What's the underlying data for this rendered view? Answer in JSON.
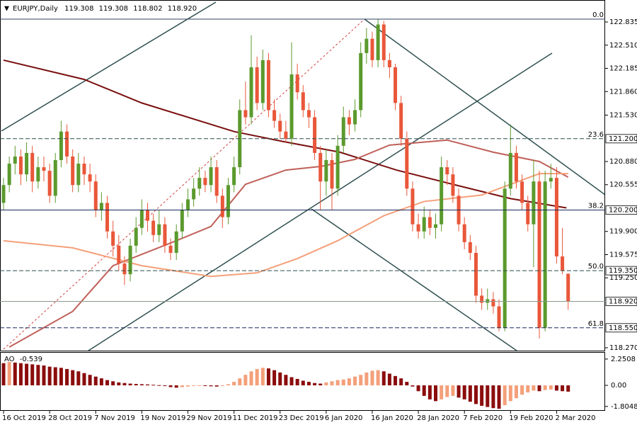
{
  "chart_data": {
    "type": "candlestick",
    "title": "EURJPY,Daily",
    "last_ohlc_labels": [
      "119.308",
      "119.308",
      "118.802",
      "118.920"
    ],
    "up_color": "#5b9a2e",
    "down_color": "#e9573a",
    "ylim": [
      118.22,
      123.143
    ],
    "yticks": [
      122.835,
      {
        "value": 122.51,
        "label": "122.510"
      },
      122.185,
      {
        "value": 121.86,
        "label": "121.860"
      },
      {
        "value": 121.53,
        "label": "121.530"
      },
      {
        "value": 120.88,
        "label": "120.880"
      },
      120.555,
      {
        "value": 119.9,
        "label": "119.900"
      },
      119.575,
      {
        "value": 119.25,
        "label": "119.250"
      },
      {
        "value": 118.27,
        "label": "118.270"
      }
    ],
    "xticks": [
      {
        "value": 0,
        "label": "16 Oct 2019"
      },
      {
        "value": 8,
        "label": "28 Oct 2019"
      },
      {
        "value": 16,
        "label": "7 Nov 2019"
      },
      {
        "value": 24,
        "label": "19 Nov 2019"
      },
      {
        "value": 32,
        "label": "29 Nov 2019"
      },
      {
        "value": 40,
        "label": "11 Dec 2019"
      },
      {
        "value": 48,
        "label": "23 Dec 2019"
      },
      {
        "value": 56,
        "label": "6 Jan 2020"
      },
      {
        "value": 64,
        "label": "16 Jan 2020"
      },
      {
        "value": 72,
        "label": "28 Jan 2020"
      },
      {
        "value": 80,
        "label": "7 Feb 2020"
      },
      {
        "value": 88,
        "label": "19 Feb 2020"
      },
      {
        "value": 96,
        "label": "2 Mar 2020"
      }
    ],
    "fib_levels": [
      {
        "level": "0.0",
        "price": 122.875,
        "color": "#2f3f5f",
        "dashed": false
      },
      {
        "level": "23.6",
        "price": {
          "value": 121.2,
          "label": "121.200"
        },
        "color": "#2f4f4f",
        "dashed": true
      },
      {
        "level": "38.2",
        "price": {
          "value": 120.2,
          "label": "120.200"
        },
        "color": "#1a2a5a",
        "dashed": false
      },
      {
        "level": "50.0",
        "price": {
          "value": 119.35,
          "label": "119.350"
        },
        "color": "#2f4f4f",
        "dashed": true
      },
      {
        "level": "61.8",
        "price": {
          "value": 118.55,
          "label": "118.550"
        },
        "color": "#1a2a5a",
        "dashed": true
      }
    ],
    "ma_lines": [
      {
        "color": "#7a0f0f",
        "x": [
          0,
          14,
          24,
          40,
          48.5,
          58.4,
          68.2,
          78,
          88,
          97.7
        ],
        "values": [
          122.3,
          122.03,
          121.7,
          121.3,
          121.16,
          121.01,
          120.76,
          120.56,
          120.36,
          120.23
        ]
      },
      {
        "color": "#c0605a",
        "x": [
          1,
          12,
          19,
          30,
          36,
          42,
          49,
          55,
          61,
          67,
          77,
          85,
          93,
          98
        ],
        "values": [
          118.28,
          118.78,
          119.42,
          119.77,
          119.97,
          120.56,
          120.76,
          120.81,
          120.91,
          121.11,
          121.18,
          121.01,
          120.88,
          120.66
        ]
      },
      {
        "color": "#f4a07a",
        "x": [
          0,
          12,
          24,
          36,
          44,
          51,
          58,
          66,
          73,
          83,
          93,
          98
        ],
        "values": [
          119.77,
          119.67,
          119.42,
          119.27,
          119.32,
          119.52,
          119.77,
          120.12,
          120.32,
          120.41,
          120.71,
          120.71
        ]
      }
    ],
    "candles": [
      [
        120.3,
        120.65,
        120.2,
        120.55
      ],
      [
        120.55,
        120.95,
        120.45,
        120.85
      ],
      [
        120.85,
        121.1,
        120.7,
        120.95
      ],
      [
        120.95,
        121.05,
        120.55,
        120.7
      ],
      [
        120.7,
        121.15,
        120.6,
        121.0
      ],
      [
        121.0,
        121.1,
        120.45,
        120.6
      ],
      [
        120.6,
        120.95,
        120.5,
        120.8
      ],
      [
        120.8,
        120.95,
        120.6,
        120.75
      ],
      [
        120.75,
        120.85,
        120.3,
        120.4
      ],
      [
        120.4,
        121.0,
        120.3,
        120.9
      ],
      [
        120.9,
        121.45,
        120.8,
        121.3
      ],
      [
        121.3,
        121.4,
        120.85,
        120.95
      ],
      [
        120.95,
        121.05,
        120.45,
        120.55
      ],
      [
        120.55,
        121.0,
        120.45,
        120.85
      ],
      [
        120.85,
        120.95,
        120.55,
        120.7
      ],
      [
        120.7,
        120.85,
        120.45,
        120.6
      ],
      [
        120.6,
        120.7,
        120.1,
        120.2
      ],
      [
        120.2,
        120.45,
        120.05,
        120.3
      ],
      [
        120.3,
        120.4,
        119.8,
        119.9
      ],
      [
        119.9,
        120.05,
        119.55,
        119.7
      ],
      [
        119.7,
        119.85,
        119.35,
        119.45
      ],
      [
        119.45,
        119.55,
        119.15,
        119.3
      ],
      [
        119.3,
        119.8,
        119.2,
        119.7
      ],
      [
        119.7,
        120.1,
        119.6,
        119.95
      ],
      [
        119.95,
        120.35,
        119.85,
        120.2
      ],
      [
        120.2,
        120.3,
        119.9,
        120.05
      ],
      [
        120.05,
        120.15,
        119.75,
        119.85
      ],
      [
        119.85,
        120.2,
        119.75,
        120.0
      ],
      [
        120.0,
        120.1,
        119.6,
        119.7
      ],
      [
        119.7,
        119.8,
        119.5,
        119.6
      ],
      [
        119.6,
        120.0,
        119.5,
        119.9
      ],
      [
        119.9,
        120.3,
        119.8,
        120.2
      ],
      [
        120.2,
        120.5,
        120.1,
        120.35
      ],
      [
        120.35,
        120.65,
        120.25,
        120.5
      ],
      [
        120.5,
        120.8,
        120.4,
        120.65
      ],
      [
        120.65,
        120.75,
        120.45,
        120.55
      ],
      [
        120.55,
        120.95,
        120.45,
        120.8
      ],
      [
        120.8,
        120.9,
        120.3,
        120.4
      ],
      [
        120.4,
        120.5,
        119.95,
        120.1
      ],
      [
        120.1,
        120.65,
        120.0,
        120.55
      ],
      [
        120.55,
        120.95,
        120.45,
        120.8
      ],
      [
        120.8,
        121.75,
        120.7,
        121.6
      ],
      [
        121.6,
        122.0,
        121.4,
        121.5
      ],
      [
        121.5,
        122.65,
        121.4,
        122.2
      ],
      [
        122.2,
        122.35,
        121.6,
        121.7
      ],
      [
        121.7,
        122.45,
        121.6,
        122.3
      ],
      [
        122.3,
        122.4,
        121.5,
        121.6
      ],
      [
        121.6,
        121.75,
        121.35,
        121.45
      ],
      [
        121.45,
        121.55,
        121.2,
        121.3
      ],
      [
        121.3,
        121.45,
        121.15,
        121.2
      ],
      [
        121.2,
        122.55,
        121.1,
        122.1
      ],
      [
        122.1,
        122.25,
        121.75,
        121.85
      ],
      [
        121.85,
        121.95,
        121.5,
        121.6
      ],
      [
        121.6,
        121.7,
        121.35,
        121.5
      ],
      [
        121.5,
        121.6,
        120.9,
        121.0
      ],
      [
        121.0,
        121.1,
        120.2,
        120.6
      ],
      [
        120.6,
        121.05,
        120.4,
        120.9
      ],
      [
        120.9,
        121.0,
        120.2,
        120.5
      ],
      [
        120.5,
        121.25,
        120.4,
        121.1
      ],
      [
        121.1,
        121.65,
        121.0,
        121.5
      ],
      [
        121.5,
        121.6,
        121.25,
        121.4
      ],
      [
        121.4,
        121.75,
        121.3,
        121.6
      ],
      [
        121.6,
        122.55,
        121.5,
        122.4
      ],
      [
        122.4,
        122.75,
        122.25,
        122.6
      ],
      [
        122.6,
        122.7,
        122.2,
        122.3
      ],
      [
        122.3,
        122.88,
        122.2,
        122.8
      ],
      [
        122.8,
        122.85,
        122.2,
        122.3
      ],
      [
        122.3,
        122.4,
        122.05,
        122.2
      ],
      [
        122.2,
        122.25,
        121.6,
        121.7
      ],
      [
        121.7,
        121.8,
        121.1,
        121.2
      ],
      [
        121.2,
        121.3,
        120.4,
        120.5
      ],
      [
        120.5,
        120.6,
        119.9,
        120.0
      ],
      [
        120.0,
        120.15,
        119.8,
        119.9
      ],
      [
        119.9,
        120.25,
        119.8,
        120.1
      ],
      [
        120.1,
        120.2,
        119.85,
        119.95
      ],
      [
        119.95,
        120.15,
        119.8,
        120.0
      ],
      [
        120.0,
        120.95,
        119.9,
        120.8
      ],
      [
        120.8,
        120.9,
        120.55,
        120.7
      ],
      [
        120.7,
        120.8,
        120.3,
        120.4
      ],
      [
        120.4,
        120.5,
        119.9,
        120.0
      ],
      [
        120.0,
        120.1,
        119.65,
        119.75
      ],
      [
        119.75,
        119.85,
        119.5,
        119.6
      ],
      [
        119.6,
        119.7,
        118.9,
        119.0
      ],
      [
        119.0,
        119.1,
        118.8,
        118.9
      ],
      [
        118.9,
        119.1,
        118.8,
        118.95
      ],
      [
        118.95,
        119.05,
        118.75,
        118.85
      ],
      [
        118.85,
        118.95,
        118.5,
        118.55
      ],
      [
        118.55,
        120.6,
        118.5,
        120.5
      ],
      [
        120.5,
        121.4,
        120.4,
        121.0
      ],
      [
        121.0,
        121.1,
        120.5,
        120.6
      ],
      [
        120.6,
        120.7,
        120.2,
        120.3
      ],
      [
        120.3,
        120.4,
        119.9,
        120.0
      ],
      [
        120.0,
        120.9,
        119.4,
        120.6
      ],
      [
        120.6,
        120.75,
        118.4,
        118.55
      ],
      [
        118.55,
        120.75,
        118.5,
        120.6
      ],
      [
        120.6,
        120.85,
        120.5,
        120.65
      ],
      [
        120.65,
        120.8,
        119.45,
        119.55
      ],
      [
        119.55,
        119.95,
        119.3,
        119.35
      ],
      [
        119.308,
        119.308,
        118.802,
        118.92
      ]
    ],
    "ao": {
      "name": "AO",
      "up_color": "#f4a07a",
      "down_color": "#8b0d0d",
      "ylim": [
        -2.18,
        2.79
      ],
      "yticks": [
        2.2508,
        {
          "value": 0,
          "label": "0.00"
        },
        -1.8048
      ],
      "values": [
        1.9,
        2.0,
        1.95,
        1.9,
        1.85,
        1.8,
        1.75,
        1.7,
        1.6,
        1.55,
        1.5,
        1.4,
        1.3,
        1.2,
        1.05,
        0.9,
        0.75,
        0.6,
        0.45,
        0.35,
        0.25,
        0.2,
        0.15,
        0.12,
        0.1,
        0.08,
        0.05,
        0.02,
        -0.05,
        -0.15,
        -0.2,
        -0.15,
        -0.1,
        -0.05,
        -0.02,
        -0.05,
        -0.08,
        -0.1,
        -0.05,
        0.1,
        0.3,
        0.6,
        0.9,
        1.2,
        1.4,
        1.5,
        1.45,
        1.3,
        1.1,
        0.9,
        0.7,
        0.55,
        0.4,
        0.3,
        0.2,
        0.15,
        0.25,
        0.35,
        0.45,
        0.5,
        0.6,
        0.75,
        0.9,
        1.1,
        1.25,
        1.3,
        1.2,
        1.0,
        0.8,
        0.6,
        0.3,
        -0.1,
        -0.5,
        -0.9,
        -1.2,
        -1.35,
        -1.2,
        -1.0,
        -0.9,
        -1.05,
        -1.2,
        -1.4,
        -1.6,
        -1.75,
        -1.85,
        -1.95,
        -2.0,
        -1.7,
        -1.35,
        -1.1,
        -0.8,
        -0.6,
        -0.45,
        -0.5,
        -0.4,
        -0.35,
        -0.45,
        -0.5,
        -0.539
      ]
    }
  }
}
